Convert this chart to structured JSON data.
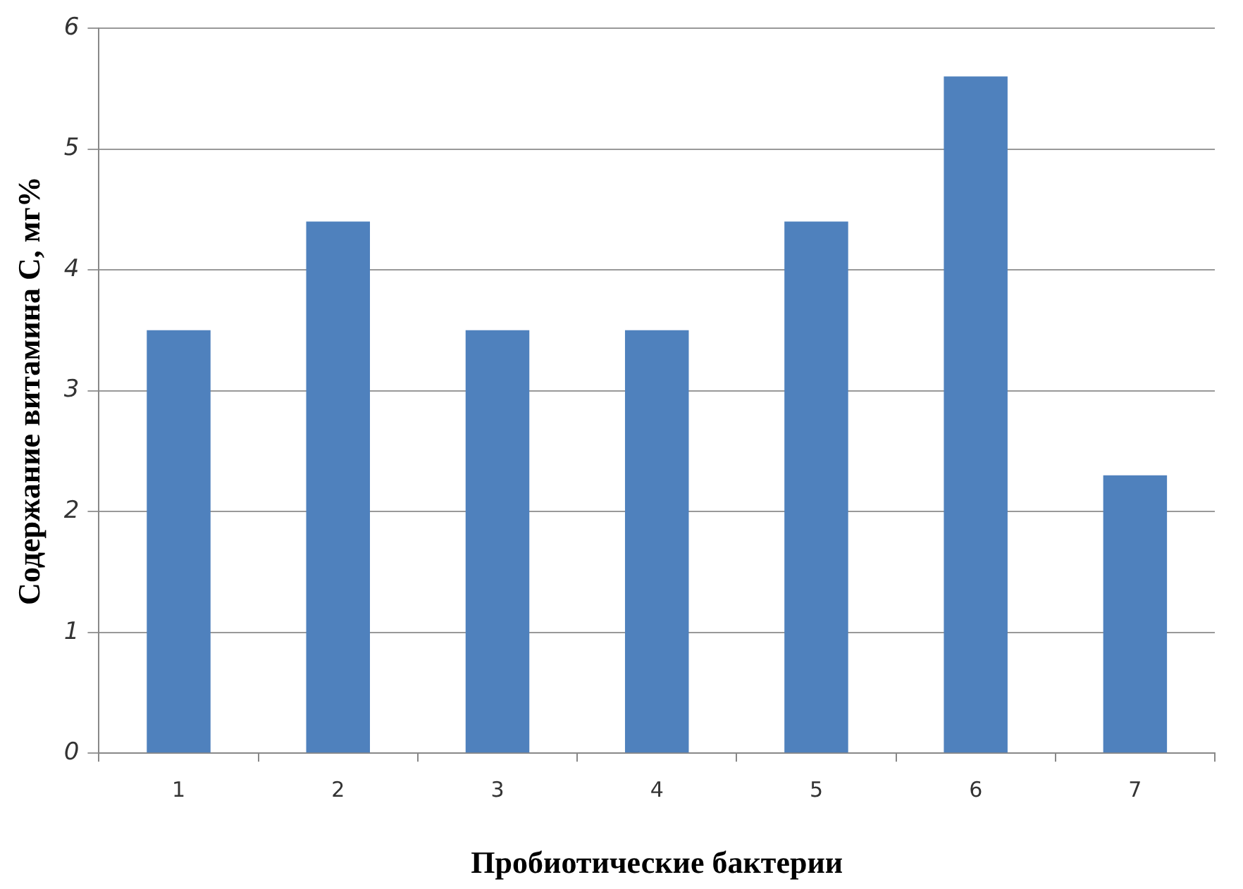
{
  "chart_data": {
    "type": "bar",
    "xlabel": "Пробиотические бактерии",
    "ylabel": "Содержание витамина С, мг%",
    "categories": [
      "1",
      "2",
      "3",
      "4",
      "5",
      "6",
      "7"
    ],
    "values": [
      3.5,
      4.4,
      3.5,
      3.5,
      4.4,
      5.6,
      2.3
    ],
    "color": "#4f81bd",
    "ylim": [
      0,
      6
    ],
    "yticks": [
      0,
      1,
      2,
      3,
      4,
      5,
      6
    ],
    "grid": "y",
    "legend": false
  }
}
